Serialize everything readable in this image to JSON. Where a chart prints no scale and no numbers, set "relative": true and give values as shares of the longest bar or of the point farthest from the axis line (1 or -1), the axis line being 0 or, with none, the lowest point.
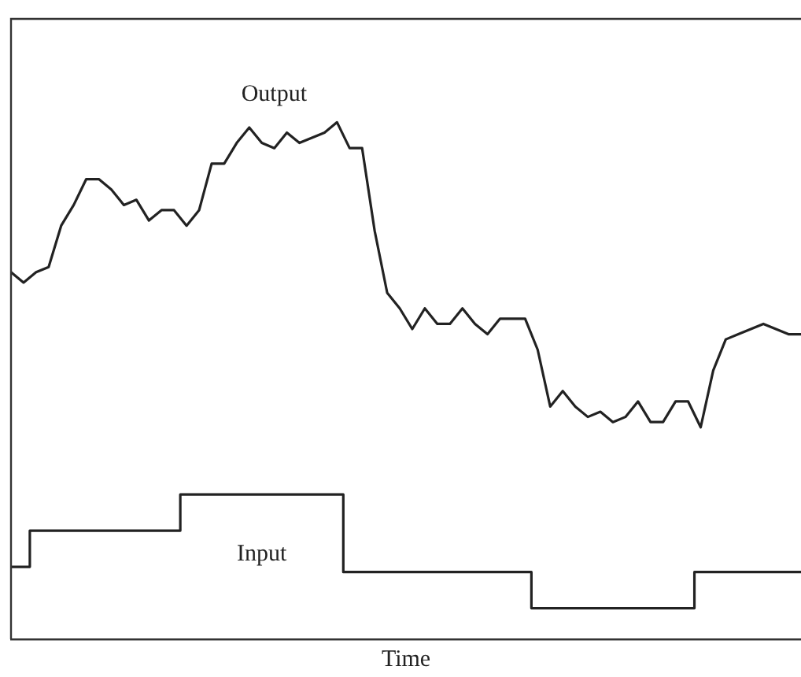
{
  "chart_data": {
    "type": "line",
    "relative": true,
    "xlabel": "Time",
    "legend": false,
    "marker": "none",
    "line_style": "solid",
    "categories": [
      null,
      null,
      null,
      null,
      null,
      null,
      null,
      null,
      null,
      null,
      null,
      null,
      null,
      null,
      null,
      null,
      null,
      null,
      null,
      null,
      null,
      null,
      null,
      null,
      null,
      null,
      null,
      null,
      null,
      null,
      null,
      null,
      null,
      null,
      null,
      null,
      null,
      null,
      null,
      null,
      null,
      null,
      null,
      null,
      null,
      null,
      null,
      null,
      null,
      null,
      null,
      null,
      null,
      null,
      null,
      null,
      null,
      null,
      null,
      null,
      null,
      null,
      null,
      null
    ],
    "series": [
      {
        "name": "Output",
        "color": "#222222",
        "values": [
          0.71,
          0.69,
          0.71,
          0.72,
          0.8,
          0.84,
          0.89,
          0.89,
          0.87,
          0.84,
          0.85,
          0.81,
          0.83,
          0.83,
          0.8,
          0.83,
          0.92,
          0.92,
          0.96,
          0.99,
          0.96,
          0.95,
          0.98,
          0.96,
          0.97,
          0.98,
          1.0,
          0.95,
          0.95,
          0.79,
          0.67,
          0.64,
          0.6,
          0.64,
          0.61,
          0.61,
          0.64,
          0.61,
          0.59,
          0.62,
          0.62,
          0.62,
          0.56,
          0.45,
          0.48,
          0.45,
          0.43,
          0.44,
          0.42,
          0.43,
          0.46,
          0.42,
          0.42,
          0.46,
          0.46,
          0.41,
          0.52,
          0.58,
          0.59,
          0.6,
          0.61,
          0.6,
          0.59,
          0.59
        ]
      },
      {
        "name": "Input",
        "type": "step",
        "color": "#222222",
        "values": [
          0.14,
          0.14,
          0.21,
          0.21,
          0.21,
          0.21,
          0.21,
          0.21,
          0.21,
          0.21,
          0.21,
          0.21,
          0.21,
          0.21,
          0.28,
          0.28,
          0.28,
          0.28,
          0.28,
          0.28,
          0.28,
          0.28,
          0.28,
          0.28,
          0.28,
          0.28,
          0.28,
          0.13,
          0.13,
          0.13,
          0.13,
          0.13,
          0.13,
          0.13,
          0.13,
          0.13,
          0.13,
          0.13,
          0.13,
          0.13,
          0.13,
          0.13,
          0.06,
          0.06,
          0.06,
          0.06,
          0.06,
          0.06,
          0.06,
          0.06,
          0.06,
          0.06,
          0.06,
          0.06,
          0.06,
          0.13,
          0.13,
          0.13,
          0.13,
          0.13,
          0.13,
          0.13,
          0.13,
          0.13
        ]
      }
    ]
  }
}
